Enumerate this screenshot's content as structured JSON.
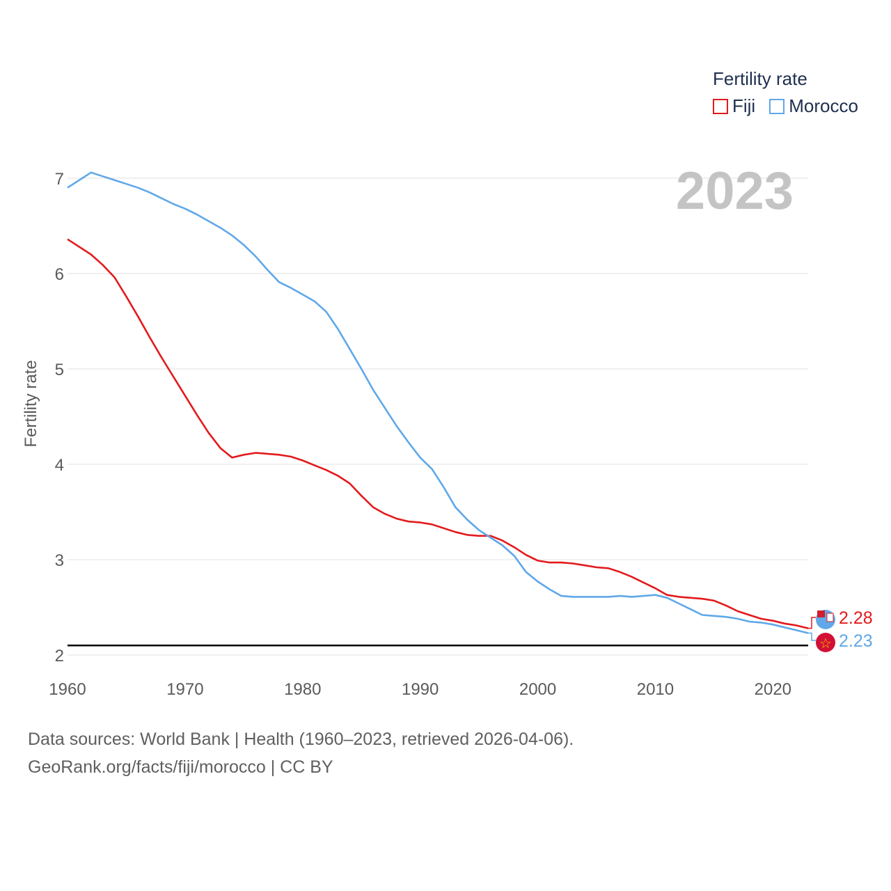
{
  "chart_data": {
    "type": "line",
    "title": "Fertility rate",
    "ylabel": "Fertility rate",
    "xlabel": "",
    "year_label": "2023",
    "xlim": [
      1960,
      2023
    ],
    "ylim": [
      2,
      7.1
    ],
    "x_ticks": [
      1960,
      1970,
      1980,
      1990,
      2000,
      2010,
      2020
    ],
    "y_ticks": [
      2,
      3,
      4,
      5,
      6,
      7
    ],
    "reference_line": 2.1,
    "legend": {
      "title": "Fertility rate",
      "placement": "top-right"
    },
    "series": [
      {
        "name": "Fiji",
        "color": "#e31a1c",
        "end_label": "2.28",
        "points": [
          [
            1960,
            6.36
          ],
          [
            1962,
            6.2
          ],
          [
            1963,
            6.09
          ],
          [
            1964,
            5.96
          ],
          [
            1965,
            5.76
          ],
          [
            1966,
            5.55
          ],
          [
            1967,
            5.33
          ],
          [
            1968,
            5.12
          ],
          [
            1969,
            4.92
          ],
          [
            1970,
            4.72
          ],
          [
            1971,
            4.52
          ],
          [
            1972,
            4.33
          ],
          [
            1973,
            4.17
          ],
          [
            1974,
            4.07
          ],
          [
            1975,
            4.1
          ],
          [
            1976,
            4.12
          ],
          [
            1977,
            4.11
          ],
          [
            1978,
            4.1
          ],
          [
            1979,
            4.08
          ],
          [
            1980,
            4.04
          ],
          [
            1981,
            3.99
          ],
          [
            1982,
            3.94
          ],
          [
            1983,
            3.88
          ],
          [
            1984,
            3.8
          ],
          [
            1985,
            3.67
          ],
          [
            1986,
            3.55
          ],
          [
            1987,
            3.48
          ],
          [
            1988,
            3.43
          ],
          [
            1989,
            3.4
          ],
          [
            1990,
            3.39
          ],
          [
            1991,
            3.37
          ],
          [
            1992,
            3.33
          ],
          [
            1993,
            3.29
          ],
          [
            1994,
            3.26
          ],
          [
            1995,
            3.25
          ],
          [
            1996,
            3.25
          ],
          [
            1997,
            3.2
          ],
          [
            1998,
            3.13
          ],
          [
            1999,
            3.05
          ],
          [
            2000,
            2.99
          ],
          [
            2001,
            2.97
          ],
          [
            2002,
            2.97
          ],
          [
            2003,
            2.96
          ],
          [
            2004,
            2.94
          ],
          [
            2005,
            2.92
          ],
          [
            2006,
            2.91
          ],
          [
            2007,
            2.87
          ],
          [
            2008,
            2.82
          ],
          [
            2009,
            2.76
          ],
          [
            2010,
            2.7
          ],
          [
            2011,
            2.63
          ],
          [
            2012,
            2.61
          ],
          [
            2013,
            2.6
          ],
          [
            2014,
            2.59
          ],
          [
            2015,
            2.57
          ],
          [
            2016,
            2.52
          ],
          [
            2017,
            2.46
          ],
          [
            2018,
            2.42
          ],
          [
            2019,
            2.38
          ],
          [
            2020,
            2.36
          ],
          [
            2021,
            2.33
          ],
          [
            2022,
            2.31
          ],
          [
            2023,
            2.28
          ]
        ]
      },
      {
        "name": "Morocco",
        "color": "#5fa8e8",
        "end_label": "2.23",
        "points": [
          [
            1960,
            6.9
          ],
          [
            1962,
            7.06
          ],
          [
            1963,
            7.02
          ],
          [
            1964,
            6.98
          ],
          [
            1965,
            6.94
          ],
          [
            1966,
            6.9
          ],
          [
            1967,
            6.85
          ],
          [
            1968,
            6.79
          ],
          [
            1969,
            6.73
          ],
          [
            1970,
            6.68
          ],
          [
            1971,
            6.62
          ],
          [
            1972,
            6.55
          ],
          [
            1973,
            6.48
          ],
          [
            1974,
            6.4
          ],
          [
            1975,
            6.3
          ],
          [
            1976,
            6.18
          ],
          [
            1977,
            6.04
          ],
          [
            1978,
            5.91
          ],
          [
            1979,
            5.85
          ],
          [
            1980,
            5.78
          ],
          [
            1981,
            5.71
          ],
          [
            1982,
            5.6
          ],
          [
            1983,
            5.42
          ],
          [
            1984,
            5.21
          ],
          [
            1985,
            5.0
          ],
          [
            1986,
            4.78
          ],
          [
            1987,
            4.59
          ],
          [
            1988,
            4.4
          ],
          [
            1989,
            4.23
          ],
          [
            1990,
            4.07
          ],
          [
            1991,
            3.95
          ],
          [
            1992,
            3.76
          ],
          [
            1993,
            3.55
          ],
          [
            1994,
            3.42
          ],
          [
            1995,
            3.31
          ],
          [
            1996,
            3.23
          ],
          [
            1997,
            3.15
          ],
          [
            1998,
            3.04
          ],
          [
            1999,
            2.87
          ],
          [
            2000,
            2.77
          ],
          [
            2001,
            2.69
          ],
          [
            2002,
            2.62
          ],
          [
            2003,
            2.61
          ],
          [
            2004,
            2.61
          ],
          [
            2005,
            2.61
          ],
          [
            2006,
            2.61
          ],
          [
            2007,
            2.62
          ],
          [
            2008,
            2.61
          ],
          [
            2009,
            2.62
          ],
          [
            2010,
            2.63
          ],
          [
            2011,
            2.6
          ],
          [
            2012,
            2.54
          ],
          [
            2013,
            2.48
          ],
          [
            2014,
            2.42
          ],
          [
            2015,
            2.41
          ],
          [
            2016,
            2.4
          ],
          [
            2017,
            2.38
          ],
          [
            2018,
            2.35
          ],
          [
            2019,
            2.34
          ],
          [
            2020,
            2.32
          ],
          [
            2021,
            2.29
          ],
          [
            2022,
            2.26
          ],
          [
            2023,
            2.23
          ]
        ]
      }
    ]
  },
  "footer": {
    "line1": "Data sources: World Bank | Health (1960–2023, retrieved 2026-04-06).",
    "line2": "GeoRank.org/facts/fiji/morocco | CC BY"
  }
}
